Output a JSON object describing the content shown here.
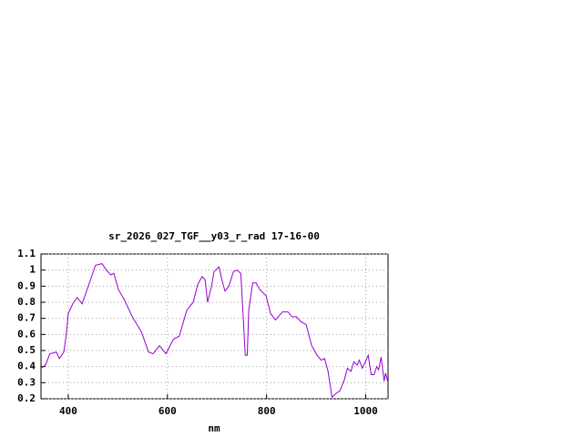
{
  "chart_data": {
    "type": "line",
    "title": "sr_2026_027_TGF__y03_r_rad 17-16-00",
    "xlabel": "nm",
    "x": [
      345,
      354,
      363,
      376,
      382,
      391,
      396,
      400,
      409,
      418,
      428,
      437,
      446,
      455,
      468,
      477,
      486,
      492,
      501,
      514,
      529,
      547,
      562,
      571,
      584,
      597,
      612,
      624,
      639,
      652,
      661,
      670,
      676,
      681,
      689,
      694,
      704,
      709,
      716,
      724,
      733,
      740,
      748,
      753,
      757,
      761,
      764,
      772,
      779,
      786,
      799,
      808,
      818,
      832,
      843,
      851,
      860,
      869,
      880,
      891,
      902,
      910,
      917,
      924,
      932,
      939,
      948,
      957,
      963,
      970,
      976,
      983,
      987,
      993,
      998,
      1005,
      1011,
      1017,
      1022,
      1026,
      1031,
      1037,
      1040,
      1045
    ],
    "values": [
      0.39,
      0.41,
      0.48,
      0.49,
      0.45,
      0.49,
      0.6,
      0.73,
      0.79,
      0.83,
      0.79,
      0.87,
      0.95,
      1.03,
      1.04,
      1.0,
      0.97,
      0.98,
      0.88,
      0.81,
      0.71,
      0.62,
      0.49,
      0.48,
      0.53,
      0.48,
      0.57,
      0.59,
      0.75,
      0.8,
      0.91,
      0.96,
      0.94,
      0.8,
      0.9,
      0.99,
      1.02,
      0.95,
      0.87,
      0.9,
      0.99,
      1.0,
      0.98,
      0.7,
      0.47,
      0.47,
      0.75,
      0.92,
      0.92,
      0.88,
      0.84,
      0.73,
      0.69,
      0.74,
      0.74,
      0.71,
      0.71,
      0.68,
      0.66,
      0.53,
      0.47,
      0.44,
      0.45,
      0.37,
      0.21,
      0.23,
      0.25,
      0.32,
      0.39,
      0.37,
      0.43,
      0.41,
      0.44,
      0.39,
      0.42,
      0.47,
      0.35,
      0.35,
      0.4,
      0.38,
      0.46,
      0.31,
      0.36,
      0.3
    ],
    "color": "#9400d3",
    "xlim": [
      345,
      1045
    ],
    "xticks": [
      400,
      600,
      800,
      1000
    ],
    "ylim": [
      0.2,
      1.1
    ],
    "yticks": [
      0.2,
      0.3,
      0.4,
      0.5,
      0.6,
      0.7,
      0.8,
      0.9,
      1,
      1.1
    ],
    "grid": true
  }
}
